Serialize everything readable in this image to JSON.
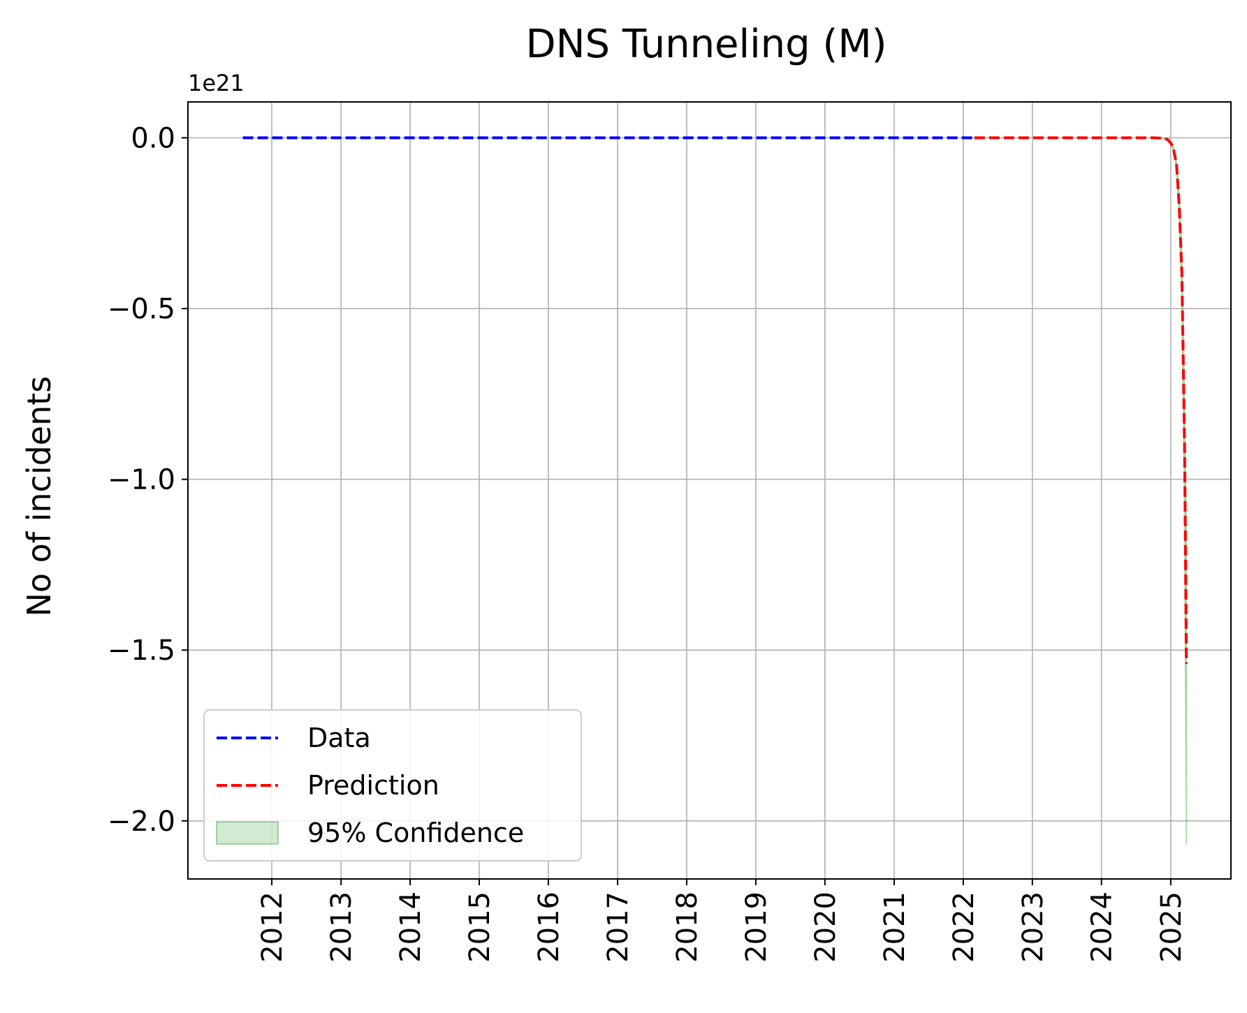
{
  "chart_data": {
    "type": "line",
    "title": "DNS Tunneling (M)",
    "xlabel": "",
    "ylabel": "No of incidents",
    "y_offset_label": "1e21",
    "y_scale_factor": 1e+21,
    "xlim": [
      "2010-10-15",
      "2025-11-15"
    ],
    "ylim": [
      -2.17,
      0.105
    ],
    "x_ticks": [
      "2012",
      "2013",
      "2014",
      "2015",
      "2016",
      "2017",
      "2018",
      "2019",
      "2020",
      "2021",
      "2022",
      "2023",
      "2024",
      "2025"
    ],
    "y_ticks": [
      0.0,
      -0.5,
      -1.0,
      -1.5,
      -2.0
    ],
    "y_tick_labels": [
      "0.0",
      "−0.5",
      "−1.0",
      "−1.5",
      "−2.0"
    ],
    "grid": true,
    "legend_position": "lower-left",
    "series": [
      {
        "name": "Data",
        "color": "#0000ff",
        "style": "dashed",
        "x": [
          "2011-08-01",
          "2013-01-01",
          "2015-01-01",
          "2017-01-01",
          "2019-01-01",
          "2021-01-01",
          "2022-03-01"
        ],
        "y": [
          0,
          0,
          0,
          0,
          0,
          0,
          0
        ]
      },
      {
        "name": "Prediction",
        "color": "#ff0000",
        "style": "dashed",
        "x": [
          "2022-03-01",
          "2023-01-01",
          "2024-01-01",
          "2024-10-01",
          "2024-11-15",
          "2024-12-15",
          "2025-01-01",
          "2025-01-15",
          "2025-02-01",
          "2025-02-15",
          "2025-03-01",
          "2025-03-15",
          "2025-03-25"
        ],
        "y": [
          0,
          0,
          0,
          0,
          -0.001,
          -0.005,
          -0.015,
          -0.03,
          -0.08,
          -0.2,
          -0.4,
          -0.9,
          -1.54
        ]
      }
    ],
    "confidence_band": {
      "name": "95% Confidence",
      "color": "#2ca02c",
      "opacity": 0.22,
      "x": [
        "2024-10-01",
        "2024-11-15",
        "2024-12-15",
        "2025-01-01",
        "2025-01-15",
        "2025-02-01",
        "2025-02-15",
        "2025-03-01",
        "2025-03-15",
        "2025-03-25"
      ],
      "lower": [
        0,
        -0.001,
        -0.006,
        -0.017,
        -0.035,
        -0.09,
        -0.23,
        -0.46,
        -1.05,
        -2.07
      ],
      "upper": [
        0,
        -0.001,
        -0.004,
        -0.013,
        -0.026,
        -0.07,
        -0.17,
        -0.34,
        -0.78,
        -1.15
      ]
    }
  }
}
